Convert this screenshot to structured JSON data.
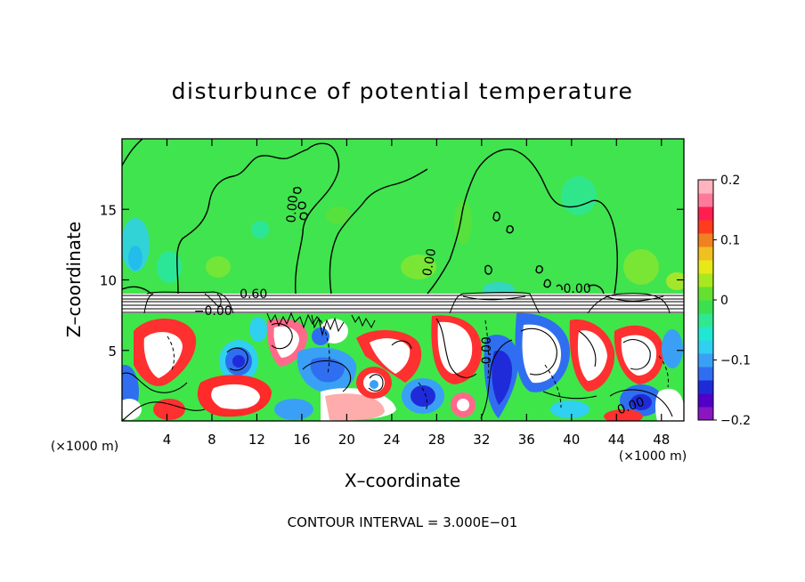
{
  "chart_data": {
    "type": "heatmap",
    "title": "disturbunce of potential temperature",
    "xlabel": "X–coordinate",
    "ylabel": "Z–coordinate",
    "x_unit_left": "(×1000 m)",
    "x_unit_right": "(×1000 m)",
    "footer": "CONTOUR INTERVAL = 3.000E−01",
    "xlim": [
      0,
      50
    ],
    "ylim": [
      0,
      20
    ],
    "x_ticks": [
      4,
      8,
      12,
      16,
      20,
      24,
      28,
      32,
      36,
      40,
      44,
      48
    ],
    "x_tick_labels": [
      "4",
      "8",
      "12",
      "16",
      "20",
      "24",
      "28",
      "32",
      "36",
      "40",
      "44",
      "48"
    ],
    "y_ticks": [
      5,
      10,
      15
    ],
    "y_tick_labels": [
      "5",
      "10",
      "15"
    ],
    "colorbar": {
      "min": -0.2,
      "max": 0.2,
      "ticks": [
        0.2,
        0.1,
        0,
        -0.1,
        -0.2
      ],
      "tick_labels": [
        "0.2",
        "0.1",
        "0",
        "−0.1",
        "−0.2"
      ],
      "colors": [
        "#8a16c2",
        "#5000c8",
        "#1f2bd8",
        "#2f6ef0",
        "#3aa0f5",
        "#30d0f0",
        "#20e8d0",
        "#30e890",
        "#3ae050",
        "#66e030",
        "#a8e820",
        "#e8e818",
        "#f0c020",
        "#f08020",
        "#ff3c1e",
        "#ff1e50",
        "#ff7a9a",
        "#ffb4c0"
      ]
    },
    "contour_labels": [
      {
        "text": "0.60",
        "x": 11.7,
        "z": 8.7
      },
      {
        "text": "−0.00",
        "x": 8.1,
        "z": 7.5
      },
      {
        "text": "0.00",
        "x": 27.7,
        "z": 11.2,
        "rotate": -80
      },
      {
        "text": "0.00",
        "x": 32.8,
        "z": 5.0,
        "rotate": -90
      },
      {
        "text": "0.00",
        "x": 40.5,
        "z": 9.1
      },
      {
        "text": "0.00",
        "x": 45.4,
        "z": 0.8,
        "rotate": -20
      },
      {
        "text": "0.00",
        "x": 15.5,
        "z": 15.0,
        "rotate": -85
      }
    ]
  }
}
